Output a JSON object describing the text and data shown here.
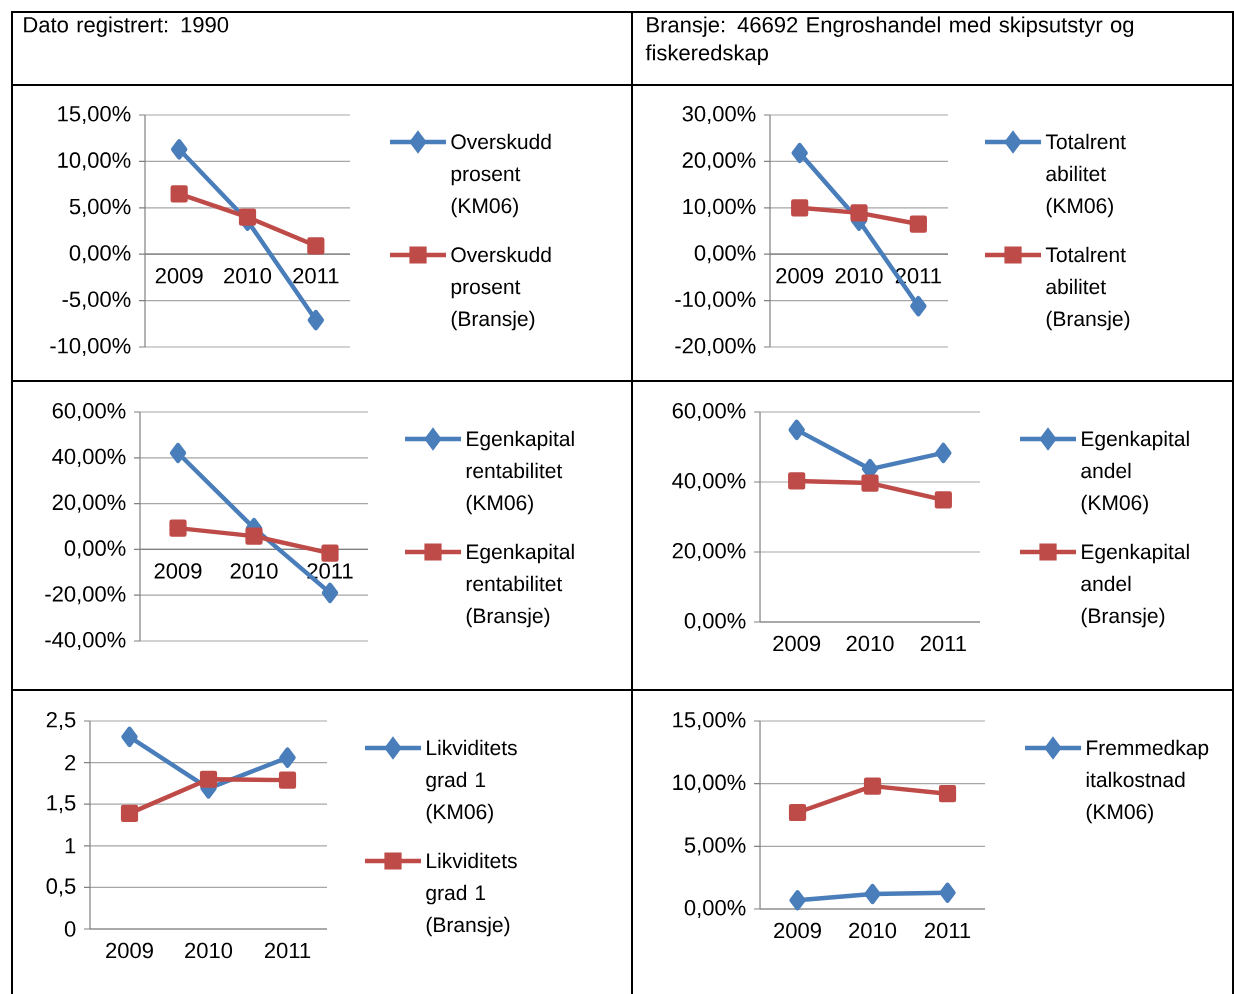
{
  "chart_data": [
    {
      "type": "other",
      "title": "Dato registrert: 1990"
    },
    {
      "type": "other",
      "title": "Bransje: 46692 Engroshandel med skipsutstyr og fiskeredskap"
    },
    {
      "type": "line",
      "categories": [
        "2009",
        "2010",
        "2011"
      ],
      "ylim": [
        -10,
        15
      ],
      "yticks": [
        {
          "value": -10,
          "label": "-10,00%"
        },
        {
          "value": -5,
          "label": "-5,00%"
        },
        {
          "value": 0,
          "label": "0,00%"
        },
        {
          "value": 5,
          "label": "5,00%"
        },
        {
          "value": 10,
          "label": "10,00%"
        },
        {
          "value": 15,
          "label": "15,00%"
        }
      ],
      "grid": "y",
      "legend": "right",
      "line_style": "solid",
      "series": [
        {
          "name": "Overskudd prosent (KM06)",
          "color": "#4a7ebb",
          "marker": "diamond",
          "values": [
            11.3,
            3.6,
            -7.1
          ]
        },
        {
          "name": "Overskudd prosent (Bransje)",
          "color": "#be4b48",
          "marker": "square",
          "values": [
            6.5,
            4.0,
            0.9
          ]
        }
      ]
    },
    {
      "type": "line",
      "categories": [
        "2009",
        "2010",
        "2011"
      ],
      "ylim": [
        -20,
        30
      ],
      "yticks": [
        {
          "value": -20,
          "label": "-20,00%"
        },
        {
          "value": -10,
          "label": "-10,00%"
        },
        {
          "value": 0,
          "label": "0,00%"
        },
        {
          "value": 10,
          "label": "10,00%"
        },
        {
          "value": 20,
          "label": "20,00%"
        },
        {
          "value": 30,
          "label": "30,00%"
        }
      ],
      "grid": "y",
      "legend": "right",
      "line_style": "solid",
      "series": [
        {
          "name": "Totalrent abilitet (KM06)",
          "color": "#4a7ebb",
          "marker": "diamond",
          "values": [
            21.8,
            7.2,
            -11.2
          ]
        },
        {
          "name": "Totalrent abilitet (Bransje)",
          "color": "#be4b48",
          "marker": "square",
          "values": [
            10.0,
            8.9,
            6.5
          ]
        }
      ]
    },
    {
      "type": "line",
      "categories": [
        "2009",
        "2010",
        "2011"
      ],
      "ylim": [
        -40,
        60
      ],
      "yticks": [
        {
          "value": -40,
          "label": "-40,00%"
        },
        {
          "value": -20,
          "label": "-20,00%"
        },
        {
          "value": 0,
          "label": "0,00%"
        },
        {
          "value": 20,
          "label": "20,00%"
        },
        {
          "value": 40,
          "label": "40,00%"
        },
        {
          "value": 60,
          "label": "60,00%"
        }
      ],
      "grid": "y",
      "legend": "right",
      "line_style": "solid",
      "series": [
        {
          "name": "Egenkapital rentabilitet (KM06)",
          "color": "#4a7ebb",
          "marker": "diamond",
          "values": [
            42.1,
            9.3,
            -19.0
          ]
        },
        {
          "name": "Egenkapital rentabilitet (Bransje)",
          "color": "#be4b48",
          "marker": "square",
          "values": [
            9.3,
            5.8,
            -1.6
          ]
        }
      ]
    },
    {
      "type": "line",
      "categories": [
        "2009",
        "2010",
        "2011"
      ],
      "ylim": [
        0,
        60
      ],
      "yticks": [
        {
          "value": 0,
          "label": "0,00%"
        },
        {
          "value": 20,
          "label": "20,00%"
        },
        {
          "value": 40,
          "label": "40,00%"
        },
        {
          "value": 60,
          "label": "60,00%"
        }
      ],
      "grid": "y",
      "legend": "right",
      "line_style": "solid",
      "series": [
        {
          "name": "Egenkapital andel (KM06)",
          "color": "#4a7ebb",
          "marker": "diamond",
          "values": [
            54.9,
            43.7,
            48.3
          ]
        },
        {
          "name": "Egenkapital andel (Bransje)",
          "color": "#be4b48",
          "marker": "square",
          "values": [
            40.3,
            39.7,
            34.9
          ]
        }
      ]
    },
    {
      "type": "line",
      "categories": [
        "2009",
        "2010",
        "2011"
      ],
      "ylim": [
        0,
        2.5
      ],
      "yticks": [
        0,
        {
          "value": 0.5,
          "label": "0,5"
        },
        1,
        {
          "value": 1.5,
          "label": "1,5"
        },
        2,
        {
          "value": 2.5,
          "label": "2,5"
        }
      ],
      "grid": "y",
      "legend": "right",
      "line_style": "solid",
      "series": [
        {
          "name": "Likviditets grad 1 (KM06)",
          "color": "#4a7ebb",
          "marker": "diamond",
          "values": [
            2.31,
            1.69,
            2.06
          ]
        },
        {
          "name": "Likviditets grad 1 (Bransje)",
          "color": "#be4b48",
          "marker": "square",
          "values": [
            1.39,
            1.8,
            1.79
          ]
        }
      ]
    },
    {
      "type": "line",
      "categories": [
        "2009",
        "2010",
        "2011"
      ],
      "ylim": [
        0,
        15
      ],
      "yticks": [
        {
          "value": 0,
          "label": "0,00%"
        },
        {
          "value": 5,
          "label": "5,00%"
        },
        {
          "value": 10,
          "label": "10,00%"
        },
        {
          "value": 15,
          "label": "15,00%"
        }
      ],
      "grid": "y",
      "legend": "right",
      "line_style": "solid",
      "series": [
        {
          "name": "Fremmedkap italkostnad (KM06)",
          "color": "#4a7ebb",
          "marker": "diamond",
          "values": [
            0.7,
            1.2,
            1.3
          ]
        },
        {
          "color": "#be4b48",
          "marker": "square",
          "values": [
            7.7,
            9.8,
            9.2
          ]
        }
      ]
    }
  ]
}
